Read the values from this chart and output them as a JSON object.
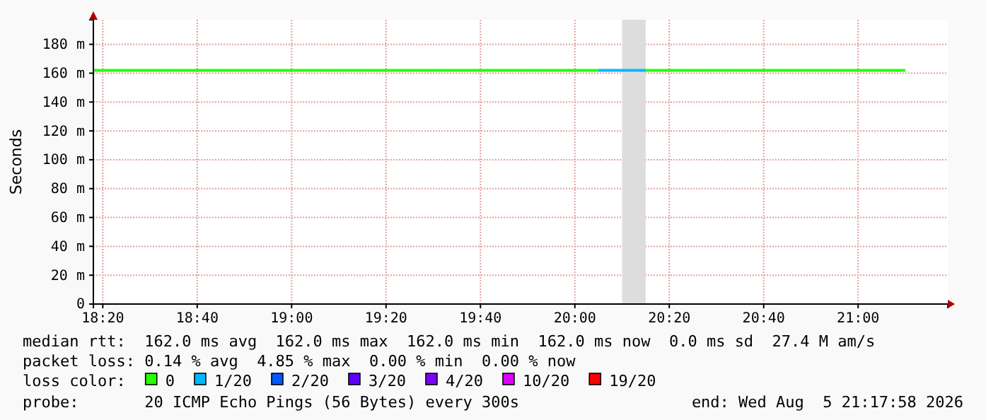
{
  "chart_data": {
    "type": "line",
    "ylabel": "Seconds",
    "legend_title": "loss color:",
    "legend": "bottom",
    "grid": true,
    "xlim": [
      "2026-08-05T18:18",
      "2026-08-05T21:19"
    ],
    "xticks": [
      {
        "value": "2026-08-05T18:20",
        "label": "18:20"
      },
      {
        "value": "2026-08-05T18:40",
        "label": "18:40"
      },
      {
        "value": "2026-08-05T19:00",
        "label": "19:00"
      },
      {
        "value": "2026-08-05T19:20",
        "label": "19:20"
      },
      {
        "value": "2026-08-05T19:40",
        "label": "19:40"
      },
      {
        "value": "2026-08-05T20:00",
        "label": "20:00"
      },
      {
        "value": "2026-08-05T20:20",
        "label": "20:20"
      },
      {
        "value": "2026-08-05T20:40",
        "label": "20:40"
      },
      {
        "value": "2026-08-05T21:00",
        "label": "21:00"
      }
    ],
    "ylim": [
      0,
      197
    ],
    "yticks": [
      0,
      {
        "value": 20,
        "label": "20 m"
      },
      {
        "value": 40,
        "label": "40 m"
      },
      {
        "value": 60,
        "label": "60 m"
      },
      {
        "value": 80,
        "label": "80 m"
      },
      {
        "value": 100,
        "label": "100 m"
      },
      {
        "value": 120,
        "label": "120 m"
      },
      {
        "value": 140,
        "label": "140 m"
      },
      {
        "value": 160,
        "label": "160 m"
      },
      {
        "value": 180,
        "label": "180 m"
      }
    ],
    "bands": [
      {
        "axis": "x",
        "from": "2026-08-05T20:10",
        "to": "2026-08-05T20:15",
        "color": "#dddddd"
      }
    ],
    "series": [
      {
        "name": "0",
        "color": "#26ff00",
        "x": [
          "2026-08-05T18:18",
          "2026-08-05T20:05",
          "2026-08-05T20:10",
          "2026-08-05T20:15",
          "2026-08-05T21:10"
        ],
        "values": [
          162,
          162,
          null,
          162,
          162
        ]
      },
      {
        "name": "1/20",
        "color": "#00b8ff",
        "x": [
          "2026-08-05T20:05",
          "2026-08-05T20:15"
        ],
        "values": [
          162,
          162
        ]
      },
      {
        "name": "2/20",
        "color": "#0059ff"
      },
      {
        "name": "3/20",
        "color": "#5e00ff"
      },
      {
        "name": "4/20",
        "color": "#7e00ff"
      },
      {
        "name": "10/20",
        "color": "#dd00ff"
      },
      {
        "name": "19/20",
        "color": "#ff0000"
      }
    ],
    "annotations": [
      "median rtt:  162.0 ms avg  162.0 ms max  162.0 ms min  162.0 ms now  0.0 ms sd  27.4 M am/s",
      "packet loss: 0.14 % avg  4.85 % max  0.00 % min  0.00 % now",
      "probe:       20 ICMP Echo Pings (56 Bytes) every 300s",
      "end: Wed Aug  5 21:17:58 2026"
    ]
  }
}
